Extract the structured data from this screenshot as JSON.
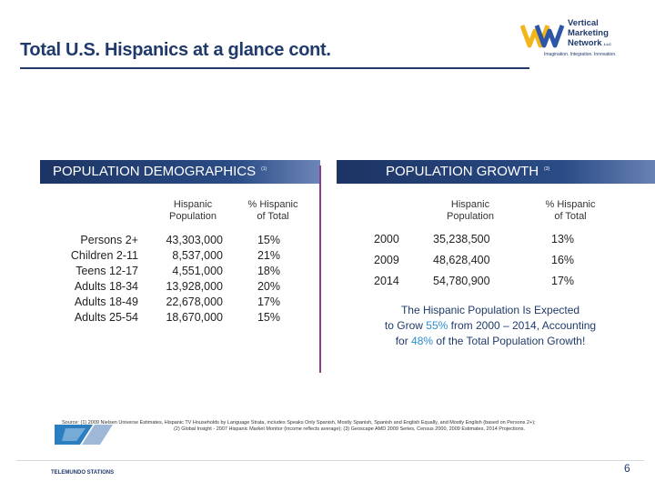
{
  "slide": {
    "title": "Total U.S. Hispanics at a glance cont.",
    "page_number": "6"
  },
  "logo": {
    "line1": "Vertical",
    "line2": "Marketing",
    "line3": "Network",
    "suffix": "LLC",
    "tagline": "Imagination. Integration. Innovation."
  },
  "demographics": {
    "heading": "POPULATION DEMOGRAPHICS",
    "footnote": "(1)",
    "col1_header": [
      "Hispanic",
      "Population"
    ],
    "col2_header": [
      "% Hispanic",
      "of Total"
    ],
    "rows": [
      {
        "label": "Persons 2+",
        "population": "43,303,000",
        "pct": "15%"
      },
      {
        "label": "Children 2-11",
        "population": "8,537,000",
        "pct": "21%"
      },
      {
        "label": "Teens 12-17",
        "population": "4,551,000",
        "pct": "18%"
      },
      {
        "label": "Adults 18-34",
        "population": "13,928,000",
        "pct": "20%"
      },
      {
        "label": "Adults 18-49",
        "population": "22,678,000",
        "pct": "17%"
      },
      {
        "label": "Adults 25-54",
        "population": "18,670,000",
        "pct": "15%"
      }
    ]
  },
  "growth": {
    "heading": "POPULATION GROWTH",
    "footnote": "(3)",
    "col1_header": [
      "Hispanic",
      "Population"
    ],
    "col2_header": [
      "% Hispanic",
      "of Total"
    ],
    "rows": [
      {
        "year": "2000",
        "population": "35,238,500",
        "pct": "13%"
      },
      {
        "year": "2009",
        "population": "48,628,400",
        "pct": "16%"
      },
      {
        "year": "2014",
        "population": "54,780,900",
        "pct": "17%"
      }
    ],
    "callout": {
      "line1": "The Hispanic Population Is Expected",
      "line2_pre": "to Grow ",
      "line2_hl": "55%",
      "line2_post": " from 2000 – 2014, Accounting",
      "line3_pre": "for ",
      "line3_hl": "48%",
      "line3_post": " of the Total Population Growth!"
    }
  },
  "sources": {
    "line1": "Source: (1) 2009 Nielsen Universe Estimates, Hispanic TV Households by Language Strata, includes Speaks Only Spanish, Mostly Spanish, Spanish and English Equally, and Mostly English (based on Persons 2+);",
    "line2": "(2) Global Insight - 2007 Hispanic Market Monitor (income reflects average); (3) Geoscape AMD 2009 Series, Census 2000, 2009 Estimates, 2014 Projections."
  },
  "footer": {
    "brand": "TELEMUNDO STATIONS"
  },
  "colors": {
    "navy": "#1f3a6b",
    "accent": "#2b8fcf",
    "divider": "#8a3d8a"
  }
}
